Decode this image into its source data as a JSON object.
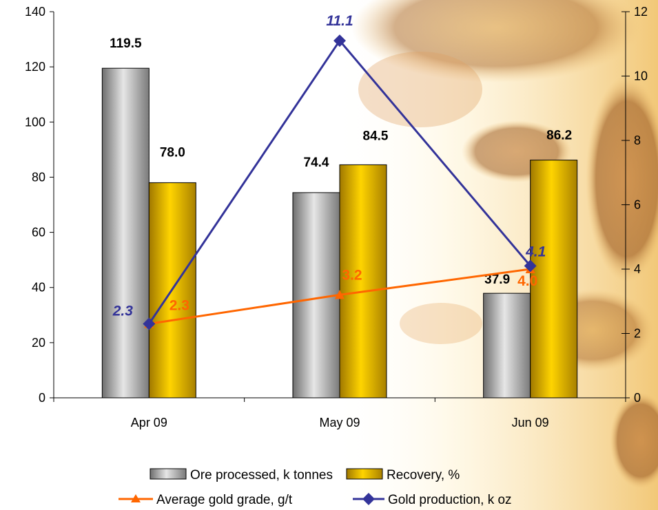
{
  "chart_data": {
    "type": "bar",
    "categories": [
      "Apr 09",
      "May 09",
      "Jun 09"
    ],
    "bar_series": [
      {
        "name": "Ore processed, k tonnes",
        "values": [
          119.5,
          74.4,
          37.9
        ],
        "labels": [
          "119.5",
          "74.4",
          "37.9"
        ],
        "color": "#9a9a9a"
      },
      {
        "name": "Recovery, %",
        "values": [
          78.0,
          84.5,
          86.2
        ],
        "labels": [
          "78.0",
          "84.5",
          "86.2"
        ],
        "color": "#e0b000"
      }
    ],
    "line_series": [
      {
        "name": "Average gold grade, g/t",
        "values": [
          2.3,
          3.2,
          4.0
        ],
        "labels": [
          "2.3",
          "3.2",
          "4.0"
        ],
        "color": "#FF6600",
        "marker": "triangle",
        "axis": "right"
      },
      {
        "name": "Gold production, k oz",
        "values": [
          2.3,
          11.1,
          4.1
        ],
        "labels": [
          "2.3",
          "11.1",
          "4.1"
        ],
        "color": "#333399",
        "marker": "diamond",
        "axis": "right"
      }
    ],
    "y_left": {
      "min": 0,
      "max": 140,
      "ticks": [
        "0",
        "20",
        "40",
        "60",
        "80",
        "100",
        "120",
        "140"
      ]
    },
    "y_right": {
      "min": 0,
      "max": 12,
      "ticks": [
        "0",
        "2",
        "4",
        "6",
        "8",
        "10",
        "12"
      ]
    },
    "grid": false,
    "legend_position": "bottom"
  }
}
